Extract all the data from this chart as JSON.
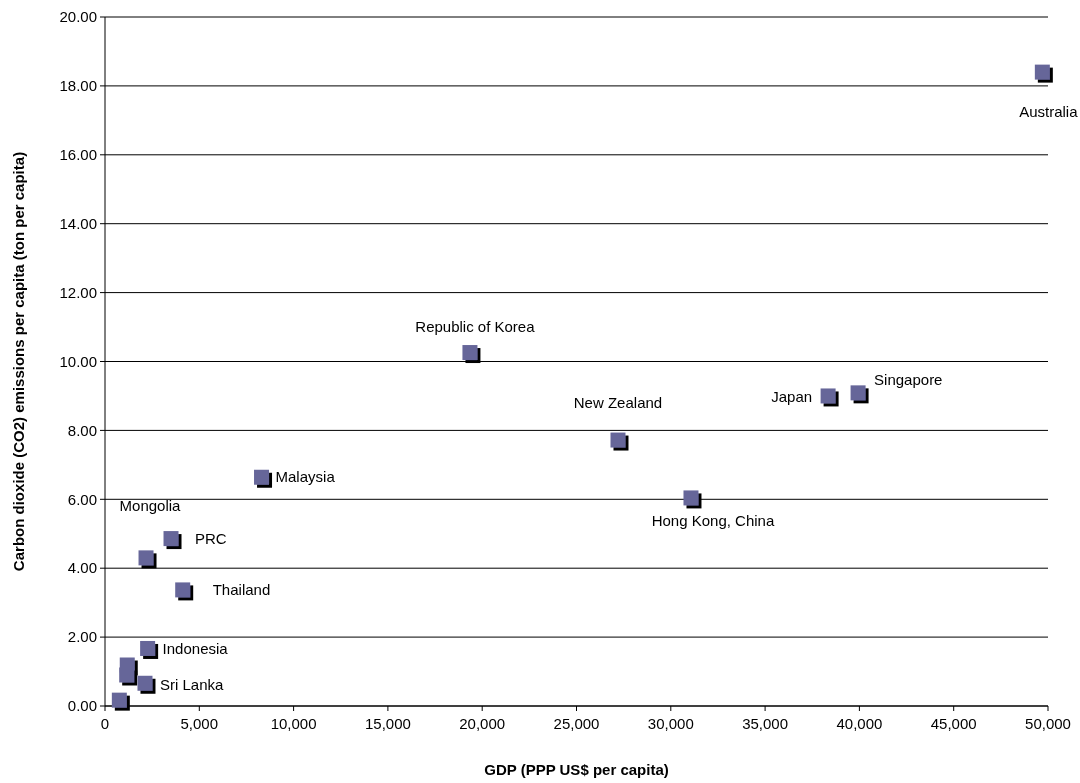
{
  "chart_data": {
    "type": "scatter",
    "xlabel": "GDP (PPP US$ per capita)",
    "ylabel": "Carbon dioxide (CO2) emissions per capita (ton per capita)",
    "series": [
      {
        "color": "#666699",
        "x": [
          49700,
          19350,
          27200,
          38340,
          39930,
          8300,
          31070,
          3500,
          2175,
          4120,
          2260,
          1180,
          1150,
          2120,
          760
        ],
        "values": [
          18.4,
          10.26,
          7.72,
          9.0,
          9.09,
          6.64,
          6.04,
          4.86,
          4.3,
          3.37,
          1.67,
          1.19,
          0.9,
          0.66,
          0.17
        ]
      }
    ],
    "annotations": [
      {
        "text": "Australia",
        "x": 49700,
        "y": 18.4
      },
      {
        "text": "Republic of Korea",
        "x": 19350,
        "y": 10.26
      },
      {
        "text": "New Zealand",
        "x": 27200,
        "y": 7.72
      },
      {
        "text": "Japan",
        "x": 38340,
        "y": 9.0
      },
      {
        "text": "Singapore",
        "x": 39930,
        "y": 9.09
      },
      {
        "text": "Malaysia",
        "x": 8300,
        "y": 6.64
      },
      {
        "text": "Hong Kong, China",
        "x": 31070,
        "y": 6.04
      },
      {
        "text": "PRC",
        "x": 3500,
        "y": 4.86
      },
      {
        "text": "Mongolia",
        "x": 2175,
        "y": 4.3
      },
      {
        "text": "Thailand",
        "x": 4120,
        "y": 3.37
      },
      {
        "text": "Indonesia",
        "x": 2260,
        "y": 1.67
      },
      {
        "text": "Sri Lanka",
        "x": 2120,
        "y": 0.66
      }
    ],
    "xlim": [
      0,
      50000
    ],
    "xticks": [
      0,
      {
        "value": 5000,
        "label": "5,000"
      },
      {
        "value": 10000,
        "label": "10,000"
      },
      {
        "value": 15000,
        "label": "15,000"
      },
      {
        "value": 20000,
        "label": "20,000"
      },
      {
        "value": 25000,
        "label": "25,000"
      },
      {
        "value": 30000,
        "label": "30,000"
      },
      {
        "value": 35000,
        "label": "35,000"
      },
      {
        "value": 40000,
        "label": "40,000"
      },
      {
        "value": 45000,
        "label": "45,000"
      },
      {
        "value": 50000,
        "label": "50,000"
      }
    ],
    "ylim": [
      0,
      20
    ],
    "yticks": [
      {
        "value": 0,
        "label": "0.00"
      },
      {
        "value": 2,
        "label": "2.00"
      },
      {
        "value": 4,
        "label": "4.00"
      },
      {
        "value": 6,
        "label": "6.00"
      },
      {
        "value": 8,
        "label": "8.00"
      },
      {
        "value": 10,
        "label": "10.00"
      },
      {
        "value": 12,
        "label": "12.00"
      },
      {
        "value": 14,
        "label": "14.00"
      },
      {
        "value": 16,
        "label": "16.00"
      },
      {
        "value": 18,
        "label": "18.00"
      },
      {
        "value": 20,
        "label": "20.00"
      }
    ],
    "grid": "y",
    "marker": "square"
  }
}
